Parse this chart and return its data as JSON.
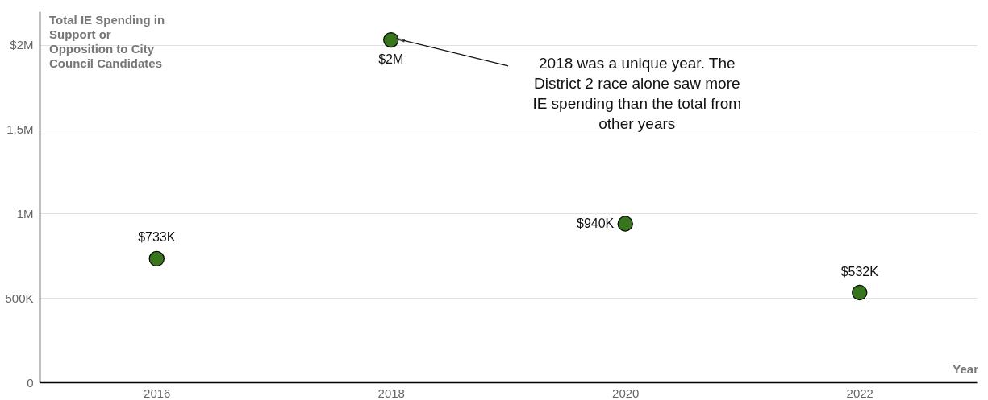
{
  "chart_data": {
    "type": "scatter",
    "ylabel": "Total IE Spending in Support or Opposition to City Council Candidates",
    "xlabel": "Year",
    "x": [
      2016,
      2018,
      2020,
      2022
    ],
    "series": [
      {
        "color": "#38761d",
        "values": [
          733000,
          2030000,
          940000,
          532000
        ],
        "value_labels": [
          "$733K",
          "$2M",
          "$940K",
          "$532K"
        ]
      }
    ],
    "xlim": [
      2015,
      2023
    ],
    "xticks": [
      2016,
      2018,
      2020,
      2022
    ],
    "ylim": [
      0,
      2200000
    ],
    "yticks": [
      0,
      {
        "value": 500000,
        "label": "500K"
      },
      {
        "value": 1000000,
        "label": "1M"
      },
      {
        "value": 1500000,
        "label": "1.5M"
      },
      {
        "value": 2000000,
        "label": "$2M"
      }
    ],
    "grid": "y",
    "marker": "circle",
    "annotations": [
      "2018 was a unique year. The District 2 race alone saw more IE spending than the total from other years"
    ]
  }
}
